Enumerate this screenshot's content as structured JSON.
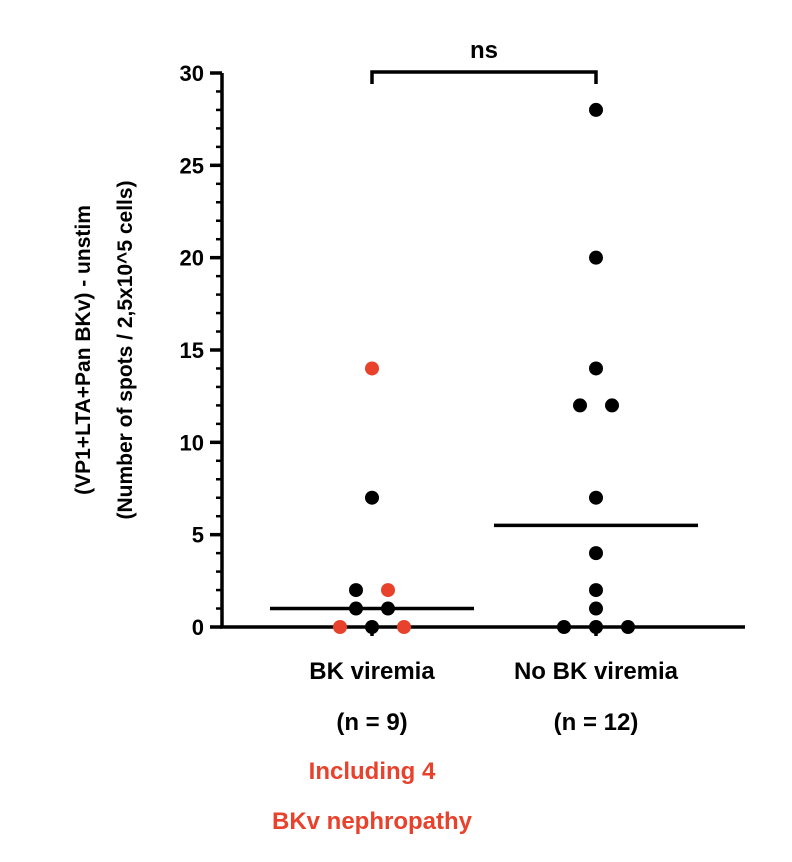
{
  "chart_data": {
    "type": "scatter",
    "title": "",
    "ylabel_line1": "(VP1+LTA+Pan BKv) - unstim",
    "ylabel_line2": "(Number of spots / 2,5x10^5 cells)",
    "ylim": [
      0,
      30
    ],
    "yticks": [
      0,
      5,
      10,
      15,
      20,
      25,
      30
    ],
    "ytick_labels": [
      "0",
      "5",
      "10",
      "15",
      "20",
      "25",
      "30"
    ],
    "grid": false,
    "categories": [
      {
        "label": "BK viremia",
        "n_label": "(n = 9)"
      },
      {
        "label": "No BK viremia",
        "n_label": "(n = 12)"
      }
    ],
    "series": [
      {
        "points": [
          {
            "offset": 0,
            "y": 14,
            "color": "#e8412c"
          },
          {
            "offset": 0,
            "y": 7,
            "color": "#000000"
          },
          {
            "offset": -1,
            "y": 2,
            "color": "#000000"
          },
          {
            "offset": 1,
            "y": 2,
            "color": "#e8412c"
          },
          {
            "offset": -1,
            "y": 1,
            "color": "#000000"
          },
          {
            "offset": 1,
            "y": 1,
            "color": "#000000"
          },
          {
            "offset": -2,
            "y": 0,
            "color": "#e8412c"
          },
          {
            "offset": 0,
            "y": 0,
            "color": "#000000"
          },
          {
            "offset": 2,
            "y": 0,
            "color": "#e8412c"
          }
        ],
        "median": 1
      },
      {
        "points": [
          {
            "offset": 0,
            "y": 28,
            "color": "#000000"
          },
          {
            "offset": 0,
            "y": 20,
            "color": "#000000"
          },
          {
            "offset": 0,
            "y": 14,
            "color": "#000000"
          },
          {
            "offset": -1,
            "y": 12,
            "color": "#000000"
          },
          {
            "offset": 1,
            "y": 12,
            "color": "#000000"
          },
          {
            "offset": 0,
            "y": 7,
            "color": "#000000"
          },
          {
            "offset": 0,
            "y": 4,
            "color": "#000000"
          },
          {
            "offset": 0,
            "y": 2,
            "color": "#000000"
          },
          {
            "offset": 0,
            "y": 1,
            "color": "#000000"
          },
          {
            "offset": -2,
            "y": 0,
            "color": "#000000"
          },
          {
            "offset": 0,
            "y": 0,
            "color": "#000000"
          },
          {
            "offset": 2,
            "y": 0,
            "color": "#000000"
          }
        ],
        "median": 5.5
      }
    ],
    "significance": {
      "label": "ns",
      "between": [
        0,
        1
      ]
    },
    "annotation": {
      "lines": [
        "Including 4",
        "BKv nephropathy"
      ],
      "color": "#e8412c"
    },
    "colors": {
      "black": "#000000",
      "highlight": "#e8412c"
    }
  }
}
